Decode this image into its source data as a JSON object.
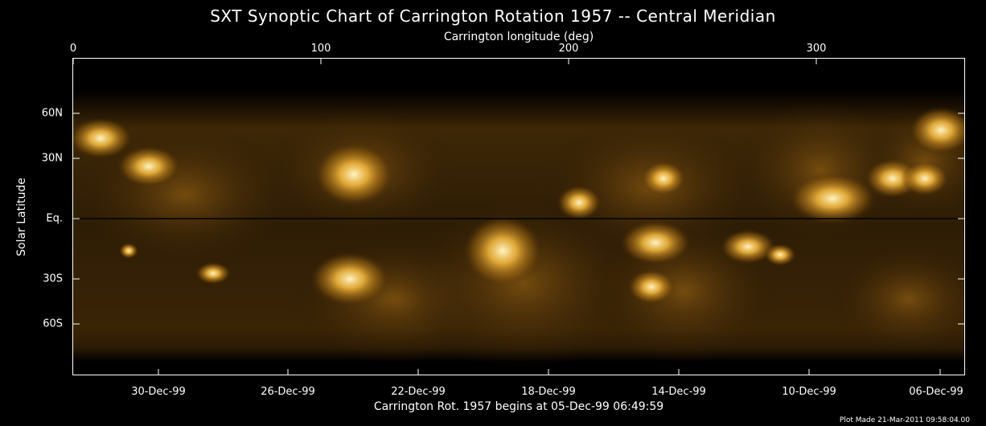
{
  "title": "SXT Synoptic Chart of Carrington Rotation 1957 -- Central Meridian",
  "top_axis": {
    "label": "Carrington longitude (deg)",
    "ticks": [
      "0",
      "100",
      "200",
      "300"
    ]
  },
  "bottom_axis": {
    "label": "Carrington Rot. 1957 begins at 05-Dec-99 06:49:59",
    "ticks": [
      "30-Dec-99",
      "26-Dec-99",
      "22-Dec-99",
      "18-Dec-99",
      "14-Dec-99",
      "10-Dec-99",
      "06-Dec-99"
    ]
  },
  "left_axis": {
    "label": "Solar Latitude",
    "ticks": [
      "60N",
      "30N",
      "Eq.",
      "30S",
      "60S"
    ]
  },
  "plot_note": "Plot Made 21-Mar-2011 09:58:04.00",
  "colors": {
    "background": "#000000",
    "text": "#ffffff",
    "image_dark": "#1a0e00",
    "image_mid": "#6e4a0c",
    "image_bright": "#ffe08a"
  }
}
